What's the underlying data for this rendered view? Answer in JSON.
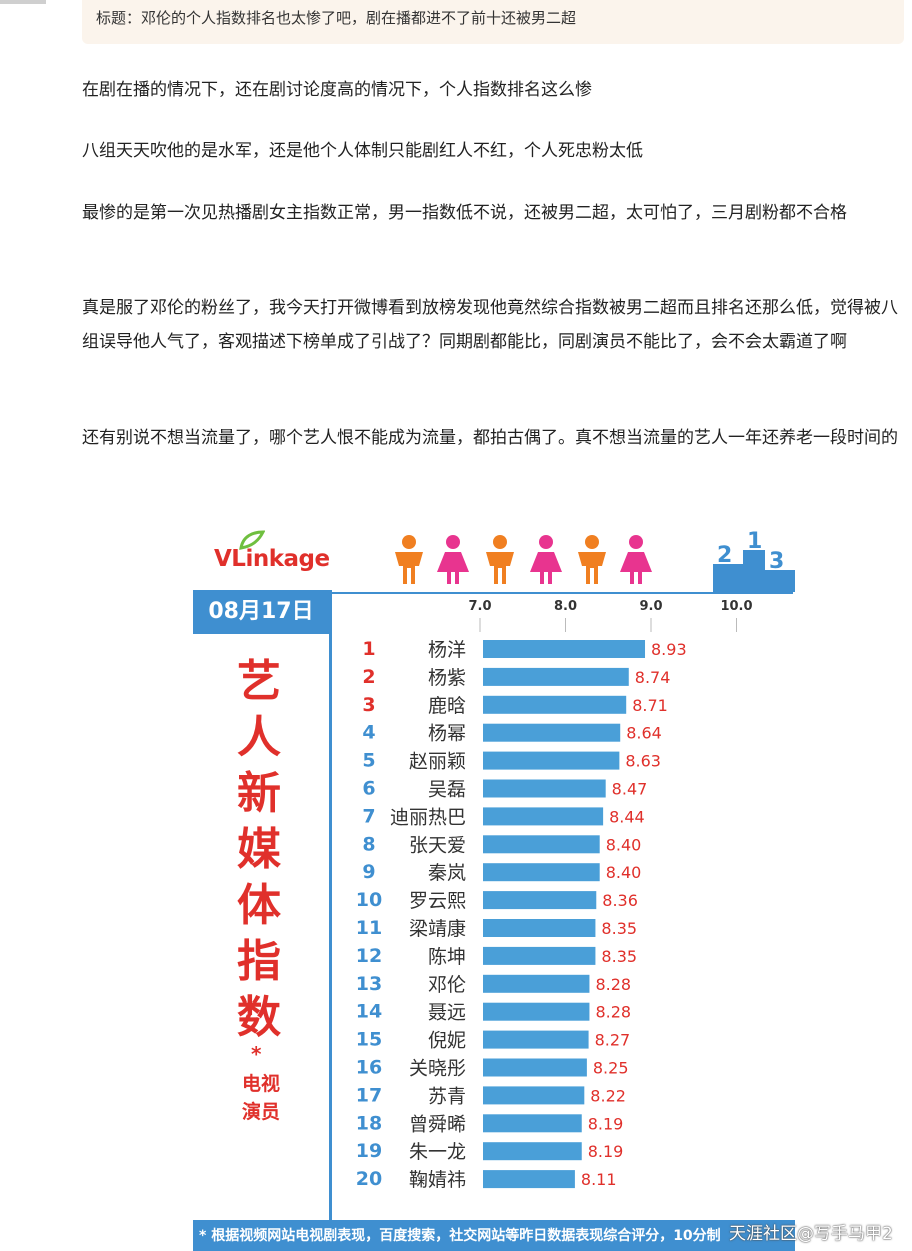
{
  "post": {
    "title": "标题：邓伦的个人指数排名也太惨了吧，剧在播都进不了前十还被男二超",
    "paragraphs": [
      "在剧在播的情况下，还在剧讨论度高的情况下，个人指数排名这么惨",
      "八组天天吹他的是水军，还是他个人体制只能剧红人不红，个人死忠粉太低",
      "最惨的是第一次见热播剧女主指数正常，男一指数低不说，还被男二超，太可怕了，三月剧粉都不合格",
      "真是服了邓伦的粉丝了，我今天打开微博看到放榜发现他竟然综合指数被男二超而且排名还那么低，觉得被八组误导他人气了，客观描述下榜单成了引战了？同期剧都能比，同剧演员不能比了，会不会太霸道了啊",
      "还有别说不想当流量了，哪个艺人恨不能成为流量，都拍古偶了。真不想当流量的艺人一年还养老一段时间的"
    ]
  },
  "infographic": {
    "logo_text": "VLinkage",
    "date": "08月17日",
    "side_title": "艺人新媒体指数",
    "side_star": "*",
    "side_subtitle": "电视演员",
    "footnote": "* 根据视频网站电视剧表现，百度搜索，社交网站等昨日数据表现综合评分，10分制",
    "colors": {
      "blue": "#3f8fd0",
      "bar": "#4a9fd8",
      "red": "#e0302b",
      "orange": "#f07f21",
      "pink": "#e8348f"
    },
    "icons": [
      "male-figure-icon",
      "female-figure-icon",
      "podium-icon",
      "leaf-logo-icon"
    ]
  },
  "chart_data": {
    "type": "bar",
    "orientation": "horizontal",
    "x_ticks": [
      "7.0",
      "8.0",
      "9.0",
      "10.0"
    ],
    "xlim": [
      7.0,
      10.0
    ],
    "ranks": [
      "1",
      "2",
      "3",
      "4",
      "5",
      "6",
      "7",
      "8",
      "9",
      "10",
      "11",
      "12",
      "13",
      "14",
      "15",
      "16",
      "17",
      "18",
      "19",
      "20"
    ],
    "categories": [
      "杨洋",
      "杨紫",
      "鹿晗",
      "杨幂",
      "赵丽颖",
      "吴磊",
      "迪丽热巴",
      "张天爱",
      "秦岚",
      "罗云熙",
      "梁靖康",
      "陈坤",
      "邓伦",
      "聂远",
      "倪妮",
      "关晓彤",
      "苏青",
      "曾舜晞",
      "朱一龙",
      "鞠婧祎"
    ],
    "values": [
      8.93,
      8.74,
      8.71,
      8.64,
      8.63,
      8.47,
      8.44,
      8.4,
      8.4,
      8.36,
      8.35,
      8.35,
      8.28,
      8.28,
      8.27,
      8.25,
      8.22,
      8.19,
      8.19,
      8.11
    ],
    "value_labels": [
      "8.93",
      "8.74",
      "8.71",
      "8.64",
      "8.63",
      "8.47",
      "8.44",
      "8.40",
      "8.40",
      "8.36",
      "8.35",
      "8.35",
      "8.28",
      "8.28",
      "8.27",
      "8.25",
      "8.22",
      "8.19",
      "8.19",
      "8.11"
    ]
  },
  "watermark": "天涯社区@写手马甲2"
}
